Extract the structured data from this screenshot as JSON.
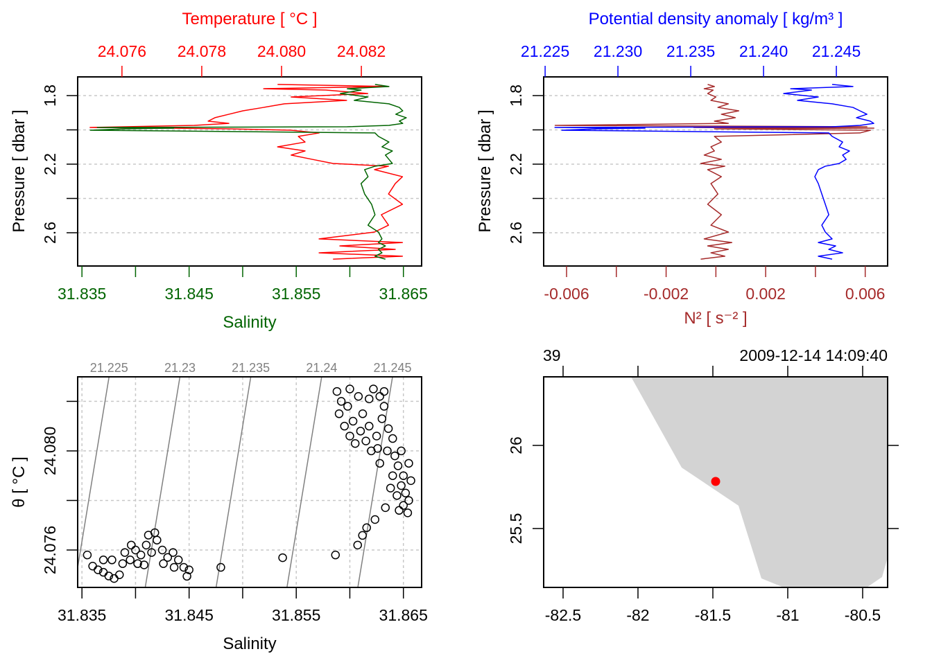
{
  "colors": {
    "temperature": "#FF0000",
    "salinity": "#006400",
    "density": "#0000FF",
    "n2": "#A52A2A",
    "isopycnal": "#808080",
    "land": "#D3D3D3",
    "station": "#FF0000"
  },
  "chart_data": [
    {
      "type": "line",
      "xlabel_top": "Temperature [ °C ]",
      "xlabel": "Salinity",
      "ylabel": "Pressure [ dbar ]",
      "ylim": [
        2.794,
        1.691
      ],
      "top_lim": [
        24.07489,
        24.08351
      ],
      "bottom_lim": [
        31.8346,
        31.8667
      ],
      "grid": true,
      "pressure_ticks": [
        1.8,
        2.0,
        2.2,
        2.4,
        2.6
      ],
      "pressure_tick_labels": [
        "1.8",
        "",
        "2.2",
        "",
        "2.6"
      ],
      "top_ticks": [
        24.076,
        24.078,
        24.08,
        24.082
      ],
      "top_tick_labels": [
        "24.076",
        "24.078",
        "24.080",
        "24.082"
      ],
      "bottom_ticks": [
        31.835,
        31.84,
        31.845,
        31.85,
        31.855,
        31.86,
        31.865
      ],
      "bottom_tick_labels": [
        "31.835",
        "",
        "31.845",
        "",
        "31.855",
        "",
        "31.865"
      ],
      "pressure": [
        1.735,
        1.747,
        1.76,
        1.768,
        1.788,
        1.808,
        1.828,
        1.848,
        1.869,
        1.889,
        1.909,
        1.929,
        1.949,
        1.962,
        1.974,
        1.982,
        1.986,
        1.99,
        1.994,
        2.002,
        2.018,
        2.038,
        2.071,
        2.099,
        2.123,
        2.147,
        2.172,
        2.196,
        2.212,
        2.232,
        2.273,
        2.313,
        2.374,
        2.434,
        2.495,
        2.556,
        2.596,
        2.636,
        2.657,
        2.677,
        2.697,
        2.717,
        2.737,
        2.754
      ],
      "series": [
        {
          "name": "Temperature",
          "axis": "top",
          "values": [
            24.0799,
            24.08268,
            24.07955,
            24.08111,
            24.08216,
            24.08024,
            24.08163,
            24.08007,
            24.07955,
            24.07903,
            24.07868,
            24.07833,
            24.07816,
            24.07868,
            24.07781,
            24.07607,
            24.0752,
            24.07711,
            24.07868,
            24.08024,
            24.08094,
            24.08042,
            24.08059,
            24.0799,
            24.08059,
            24.08024,
            24.08077,
            24.08129,
            24.08268,
            24.08233,
            24.08303,
            24.08285,
            24.08268,
            24.08303,
            24.0825,
            24.08268,
            24.08233,
            24.08094,
            24.08303,
            24.08146,
            24.08285,
            24.08094,
            24.08303,
            24.08129
          ]
        },
        {
          "name": "Salinity",
          "axis": "bottom",
          "values": [
            31.86235,
            31.86365,
            31.85976,
            31.86105,
            31.85911,
            31.8617,
            31.86041,
            31.86365,
            31.86462,
            31.86494,
            31.86429,
            31.86527,
            31.86462,
            31.86494,
            31.86365,
            31.85976,
            31.83643,
            31.84356,
            31.83902,
            31.83578,
            31.86235,
            31.86267,
            31.86365,
            31.863,
            31.86397,
            31.86332,
            31.86365,
            31.86397,
            31.86235,
            31.86138,
            31.8617,
            31.86105,
            31.86138,
            31.86203,
            31.86235,
            31.8617,
            31.86267,
            31.863,
            31.86267,
            31.86332,
            31.86267,
            31.863,
            31.86235,
            31.86332
          ]
        }
      ]
    },
    {
      "type": "line",
      "xlabel_top": "Potential density anomaly [ kg/m³ ]",
      "xlabel": "N² [ s⁻² ]",
      "ylabel": "Pressure [ dbar ]",
      "ylim": [
        2.794,
        1.691
      ],
      "top_lim": [
        21.2249,
        21.24852
      ],
      "bottom_lim": [
        -0.00692,
        0.0069
      ],
      "grid": true,
      "pressure_ticks": [
        1.8,
        2.0,
        2.2,
        2.4,
        2.6
      ],
      "pressure_tick_labels": [
        "1.8",
        "",
        "2.2",
        "",
        "2.6"
      ],
      "top_ticks": [
        21.225,
        21.23,
        21.235,
        21.24,
        21.245
      ],
      "top_tick_labels": [
        "21.225",
        "21.230",
        "21.235",
        "21.240",
        "21.245"
      ],
      "bottom_ticks": [
        -0.006,
        -0.004,
        -0.002,
        0,
        0.002,
        0.004,
        0.006
      ],
      "bottom_tick_labels": [
        "-0.006",
        "",
        "-0.002",
        "",
        "0.002",
        "",
        "0.006"
      ],
      "pressure": [
        1.735,
        1.747,
        1.76,
        1.768,
        1.788,
        1.808,
        1.828,
        1.848,
        1.869,
        1.889,
        1.909,
        1.929,
        1.949,
        1.962,
        1.974,
        1.982,
        1.986,
        1.99,
        1.994,
        2.002,
        2.018,
        2.038,
        2.071,
        2.099,
        2.123,
        2.147,
        2.172,
        2.196,
        2.212,
        2.232,
        2.273,
        2.313,
        2.374,
        2.434,
        2.495,
        2.556,
        2.596,
        2.636,
        2.657,
        2.677,
        2.697,
        2.717,
        2.737,
        2.754
      ],
      "series": [
        {
          "name": "Potential density anomaly",
          "axis": "top",
          "values": [
            21.24471,
            21.24614,
            21.24186,
            21.24329,
            21.24138,
            21.24376,
            21.24233,
            21.24471,
            21.24614,
            21.24662,
            21.2471,
            21.24638,
            21.24733,
            21.24757,
            21.24662,
            21.24471,
            21.22567,
            21.23186,
            21.22852,
            21.22614,
            21.24448,
            21.24471,
            21.24543,
            21.24519,
            21.2459,
            21.24543,
            21.24567,
            21.24519,
            21.24424,
            21.24376,
            21.24352,
            21.24376,
            21.244,
            21.24424,
            21.24448,
            21.244,
            21.24424,
            21.24471,
            21.24376,
            21.24495,
            21.24448,
            21.24543,
            21.24376,
            21.24471
          ]
        },
        {
          "name": "N²",
          "axis": "bottom",
          "values": [
            -0.00033,
            -6e-05,
            -0.00047,
            -0.00011,
            -0.00033,
            0,
            -0.0002,
            0.0005,
            8e-05,
            0.00092,
            0.00022,
            0.00078,
            -6e-05,
            0.0005,
            -0.00646,
            0.00607,
            -0.00089,
            0.00635,
            -6e-05,
            0.00621,
            0.00579,
            -6e-05,
            0.00022,
            -0.0002,
            -6e-05,
            -0.00047,
            0.00022,
            -0.00061,
            0.00036,
            -0.00033,
            0.00022,
            -0.0002,
            8e-05,
            -0.00033,
            0.00022,
            -0.0002,
            0.0005,
            -0.00047,
            0.00064,
            -0.00033,
            0.0005,
            -0.0002,
            0.00036,
            -0.00061
          ]
        }
      ]
    },
    {
      "type": "scatter",
      "xlabel": "Salinity",
      "ylabel": "θ [ °C ]",
      "xlim": [
        31.8346,
        31.8667
      ],
      "ylim": [
        24.07449,
        24.08299
      ],
      "grid": true,
      "x_ticks": [
        31.835,
        31.84,
        31.845,
        31.85,
        31.855,
        31.86,
        31.865
      ],
      "x_tick_labels": [
        "31.835",
        "",
        "31.845",
        "",
        "31.855",
        "",
        "31.865"
      ],
      "y_ticks": [
        24.076,
        24.078,
        24.08,
        24.082
      ],
      "y_tick_labels": [
        "24.076",
        "",
        "24.080",
        ""
      ],
      "isopycnals": [
        21.225,
        21.23,
        21.235,
        21.24,
        21.245
      ],
      "isopycnal_labels": [
        "21.225",
        "21.23",
        "21.235",
        "21.24",
        "21.245"
      ],
      "points": [
        [
          31.8355,
          24.0758
        ],
        [
          31.836,
          24.07535
        ],
        [
          31.8365,
          24.0752
        ],
        [
          31.837,
          24.0751
        ],
        [
          31.8375,
          24.07495
        ],
        [
          31.838,
          24.07485
        ],
        [
          31.8385,
          24.075
        ],
        [
          31.8378,
          24.0756
        ],
        [
          31.839,
          24.0759
        ],
        [
          31.8395,
          24.0756
        ],
        [
          31.84,
          24.076
        ],
        [
          31.8405,
          24.0758
        ],
        [
          31.841,
          24.0762
        ],
        [
          31.8415,
          24.0759
        ],
        [
          31.842,
          24.0764
        ],
        [
          31.8425,
          24.076
        ],
        [
          31.843,
          24.0757
        ],
        [
          31.8435,
          24.0759
        ],
        [
          31.844,
          24.0756
        ],
        [
          31.8445,
          24.0753
        ],
        [
          31.845,
          24.0752
        ],
        [
          31.8412,
          24.0766
        ],
        [
          31.8418,
          24.0767
        ],
        [
          31.8402,
          24.07545
        ],
        [
          31.8388,
          24.07545
        ],
        [
          31.8396,
          24.0762
        ],
        [
          31.8426,
          24.07545
        ],
        [
          31.8436,
          24.0753
        ],
        [
          31.8408,
          24.0754
        ],
        [
          31.837,
          24.0756
        ],
        [
          31.8448,
          24.07494
        ],
        [
          31.84796,
          24.0753
        ],
        [
          31.85373,
          24.07569
        ],
        [
          31.85866,
          24.0758
        ],
        [
          31.86073,
          24.0762
        ],
        [
          31.86118,
          24.07659
        ],
        [
          31.86157,
          24.0769
        ],
        [
          31.86235,
          24.07723
        ],
        [
          31.86332,
          24.07771
        ],
        [
          31.8588,
          24.0824
        ],
        [
          31.8592,
          24.082
        ],
        [
          31.859,
          24.0815
        ],
        [
          31.8595,
          24.081
        ],
        [
          31.86,
          24.0806
        ],
        [
          31.8605,
          24.0803
        ],
        [
          31.8598,
          24.0818
        ],
        [
          31.8603,
          24.0812
        ],
        [
          31.861,
          24.0808
        ],
        [
          31.8615,
          24.0804
        ],
        [
          31.862,
          24.08
        ],
        [
          31.8612,
          24.0815
        ],
        [
          31.8618,
          24.081
        ],
        [
          31.8625,
          24.0806
        ],
        [
          31.8622,
          24.0825
        ],
        [
          31.8628,
          24.0822
        ],
        [
          31.8632,
          24.0818
        ],
        [
          31.863,
          24.0813
        ],
        [
          31.8636,
          24.0809
        ],
        [
          31.864,
          24.0805
        ],
        [
          31.8635,
          24.08
        ],
        [
          31.8642,
          24.0798
        ],
        [
          31.8645,
          24.0794
        ],
        [
          31.865,
          24.079
        ],
        [
          31.8648,
          24.0786
        ],
        [
          31.8652,
          24.0783
        ],
        [
          31.8655,
          24.078
        ],
        [
          31.865,
          24.0778
        ],
        [
          31.8646,
          24.0776
        ],
        [
          31.8654,
          24.0775
        ],
        [
          31.8657,
          24.0788
        ],
        [
          31.864,
          24.079
        ],
        [
          31.8638,
          24.0785
        ],
        [
          31.8644,
          24.0782
        ],
        [
          31.8628,
          24.0795
        ],
        [
          31.8626,
          24.0801
        ],
        [
          31.8618,
          24.0821
        ],
        [
          31.8608,
          24.0822
        ],
        [
          31.86,
          24.0825
        ],
        [
          31.8632,
          24.0824
        ],
        [
          31.8655,
          24.0795
        ],
        [
          31.8648,
          24.08
        ]
      ]
    },
    {
      "type": "map",
      "top_left_label": "39",
      "top_right_label": "2009-12-14 14:09:40",
      "xlim": [
        -82.6296,
        -80.3333
      ],
      "ylim": [
        25.1458,
        26.4125
      ],
      "lon_ticks": [
        -82.5,
        -82,
        -81.5,
        -81,
        -80.5
      ],
      "lon_tick_labels": [
        "-82.5",
        "-82",
        "-81.5",
        "-81",
        "-80.5"
      ],
      "lat_ticks": [
        26,
        25.5
      ],
      "lat_tick_labels": [
        "26",
        "25.5"
      ],
      "land": [
        [
          -82.0463,
          26.4125
        ],
        [
          -81.7083,
          25.8667
        ],
        [
          -81.3287,
          25.6375
        ],
        [
          -81.1759,
          25.2
        ],
        [
          -81.0278,
          25.1458
        ],
        [
          -80.4722,
          25.1458
        ],
        [
          -80.3704,
          25.2083
        ],
        [
          -80.3333,
          25.325
        ],
        [
          -80.3333,
          26.4125
        ]
      ],
      "station": {
        "lon": -81.4815,
        "lat": 25.7833
      }
    }
  ]
}
